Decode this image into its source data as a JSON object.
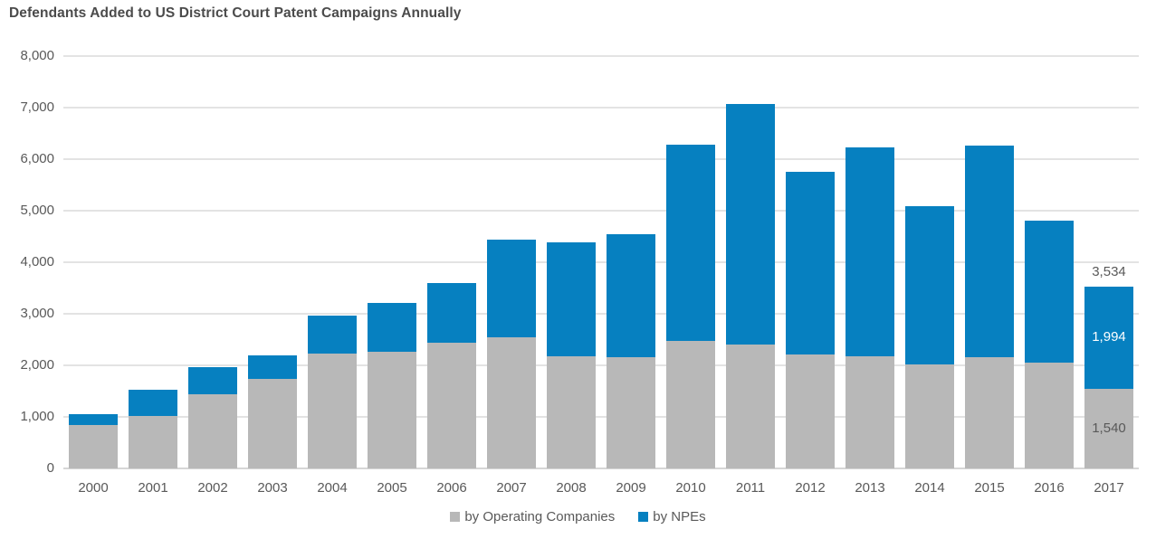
{
  "title": "Defendants Added to US District Court Patent Campaigns Annually",
  "colors": {
    "operating": "#b8b8b8",
    "npe": "#0680c0",
    "axis_text": "#595959",
    "title_text": "#4b4b4b",
    "gridline": "#e3e3e3",
    "baseline": "#d6d6d6",
    "annotation_inside_npe": "#ffffff"
  },
  "legend": {
    "items": [
      {
        "label": "by Operating Companies",
        "color_key": "operating"
      },
      {
        "label": "by NPEs",
        "color_key": "npe"
      }
    ]
  },
  "chart_data": {
    "type": "bar",
    "stacked": true,
    "title": "Defendants Added to US District Court Patent Campaigns Annually",
    "xlabel": "",
    "ylabel": "",
    "ylim": [
      0,
      8000
    ],
    "grid": true,
    "legend_position": "bottom",
    "categories": [
      "2000",
      "2001",
      "2002",
      "2003",
      "2004",
      "2005",
      "2006",
      "2007",
      "2008",
      "2009",
      "2010",
      "2011",
      "2012",
      "2013",
      "2014",
      "2015",
      "2016",
      "2017"
    ],
    "series": [
      {
        "name": "by Operating Companies",
        "color": "#b8b8b8",
        "values": [
          850,
          1010,
          1440,
          1740,
          2220,
          2270,
          2440,
          2550,
          2180,
          2150,
          2470,
          2410,
          2210,
          2170,
          2020,
          2150,
          2050,
          1540
        ]
      },
      {
        "name": "by NPEs",
        "color": "#0680c0",
        "values": [
          210,
          510,
          530,
          450,
          740,
          940,
          1160,
          1890,
          2210,
          2390,
          3810,
          4660,
          3550,
          4050,
          3070,
          4110,
          2750,
          1994
        ]
      }
    ],
    "totals": [
      1060,
      1520,
      1970,
      2190,
      2960,
      3210,
      3600,
      4440,
      4390,
      4540,
      6280,
      7070,
      5760,
      6220,
      5090,
      6260,
      4800,
      3534
    ],
    "y_ticks": [
      {
        "value": 0,
        "label": "0"
      },
      {
        "value": 1000,
        "label": "1,000"
      },
      {
        "value": 2000,
        "label": "2,000"
      },
      {
        "value": 3000,
        "label": "3,000"
      },
      {
        "value": 4000,
        "label": "4,000"
      },
      {
        "value": 5000,
        "label": "5,000"
      },
      {
        "value": 6000,
        "label": "6,000"
      },
      {
        "value": 7000,
        "label": "7,000"
      },
      {
        "value": 8000,
        "label": "8,000"
      }
    ],
    "annotations": {
      "year": "2017",
      "total": "3,534",
      "npe": "1,994",
      "oc": "1,540"
    }
  }
}
